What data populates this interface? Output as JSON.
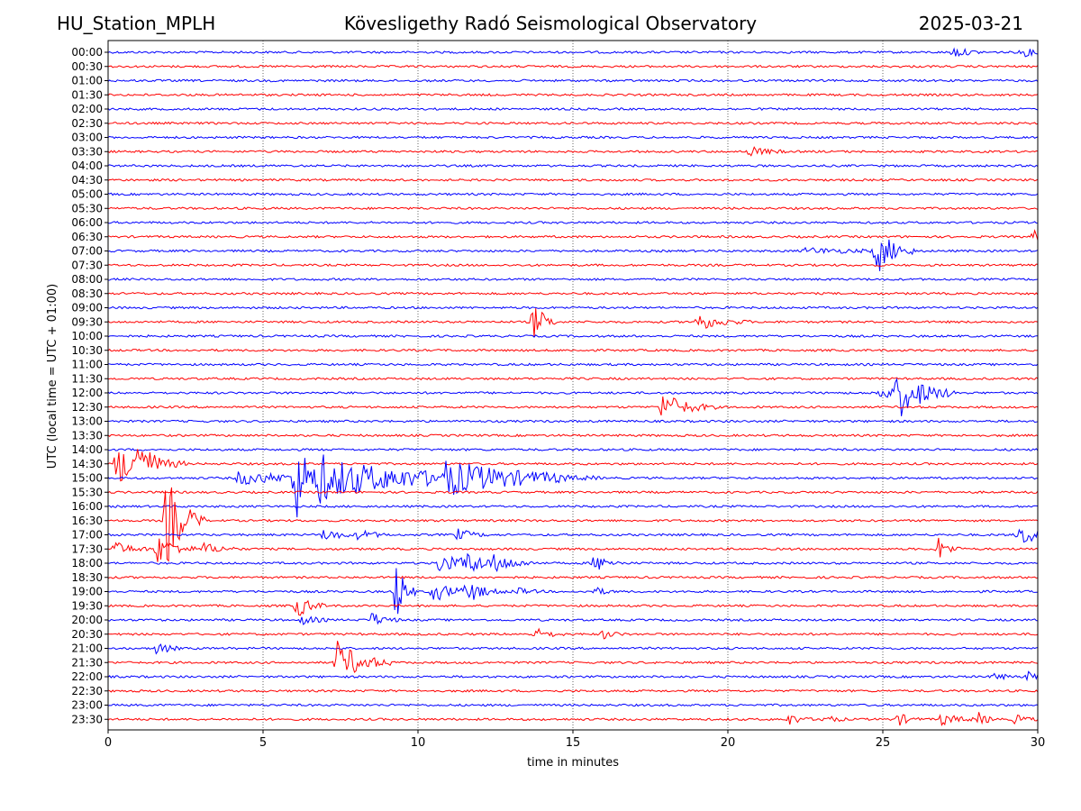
{
  "header": {
    "station": "HU_Station_MPLH",
    "observatory": "Kövesligethy Radó Seismological Observatory",
    "date": "2025-03-21"
  },
  "chart_data": {
    "type": "line",
    "title": "Kövesligethy Radó Seismological Observatory",
    "xlabel": "time in minutes",
    "ylabel": "UTC (local time = UTC + 01:00)",
    "xlim": [
      0,
      30
    ],
    "xticks": [
      0,
      5,
      10,
      15,
      20,
      25,
      30
    ],
    "grid": "vertical dotted at 5, 10, 15, 20, 25",
    "colors": {
      "even_rows": "#0000ff",
      "odd_rows": "#ff0000"
    },
    "rows": [
      "00:00",
      "00:30",
      "01:00",
      "01:30",
      "02:00",
      "02:30",
      "03:00",
      "03:30",
      "04:00",
      "04:30",
      "05:00",
      "05:30",
      "06:00",
      "06:30",
      "07:00",
      "07:30",
      "08:00",
      "08:30",
      "09:00",
      "09:30",
      "10:00",
      "10:30",
      "11:00",
      "11:30",
      "12:00",
      "12:30",
      "13:00",
      "13:30",
      "14:00",
      "14:30",
      "15:00",
      "15:30",
      "16:00",
      "16:30",
      "17:00",
      "17:30",
      "18:00",
      "18:30",
      "19:00",
      "19:30",
      "20:00",
      "20:30",
      "21:00",
      "21:30",
      "22:00",
      "22:30",
      "23:00",
      "23:30"
    ],
    "events": [
      {
        "row": "00:00",
        "t": 27.3,
        "amp": 0.35,
        "dur": 0.4
      },
      {
        "row": "00:00",
        "t": 29.5,
        "amp": 0.3,
        "dur": 0.4
      },
      {
        "row": "03:30",
        "t": 20.7,
        "amp": 0.35,
        "dur": 0.5
      },
      {
        "row": "06:30",
        "t": 29.9,
        "amp": 0.4,
        "dur": 0.2
      },
      {
        "row": "07:00",
        "t": 24.8,
        "amp": 1.6,
        "dur": 0.5
      },
      {
        "row": "07:00",
        "t": 22.5,
        "amp": 0.2,
        "dur": 1.5
      },
      {
        "row": "09:30",
        "t": 13.75,
        "amp": 1.4,
        "dur": 0.3
      },
      {
        "row": "09:30",
        "t": 19.0,
        "amp": 0.6,
        "dur": 0.7
      },
      {
        "row": "12:00",
        "t": 25.5,
        "amp": 1.6,
        "dur": 0.8
      },
      {
        "row": "12:00",
        "t": 24.9,
        "amp": 0.5,
        "dur": 0.6
      },
      {
        "row": "12:30",
        "t": 17.9,
        "amp": 1.0,
        "dur": 0.7
      },
      {
        "row": "14:30",
        "t": 0.3,
        "amp": 1.4,
        "dur": 0.9
      },
      {
        "row": "14:30",
        "t": 0.9,
        "amp": 1.8,
        "dur": 0.3
      },
      {
        "row": "15:00",
        "t": 6.05,
        "amp": 3.0,
        "dur": 0.4
      },
      {
        "row": "15:00",
        "t": 6.8,
        "amp": 1.4,
        "dur": 3.2
      },
      {
        "row": "15:00",
        "t": 10.9,
        "amp": 0.9,
        "dur": 2.0
      },
      {
        "row": "15:00",
        "t": 4.2,
        "amp": 0.45,
        "dur": 1.8
      },
      {
        "row": "16:30",
        "t": 1.9,
        "amp": 3.2,
        "dur": 0.5
      },
      {
        "row": "17:00",
        "t": 7.0,
        "amp": 0.5,
        "dur": 0.4
      },
      {
        "row": "17:00",
        "t": 8.1,
        "amp": 0.4,
        "dur": 0.4
      },
      {
        "row": "17:00",
        "t": 11.3,
        "amp": 0.4,
        "dur": 0.4
      },
      {
        "row": "17:00",
        "t": 29.4,
        "amp": 0.6,
        "dur": 1.2
      },
      {
        "row": "17:30",
        "t": 0.2,
        "amp": 0.5,
        "dur": 0.5
      },
      {
        "row": "17:30",
        "t": 1.6,
        "amp": 1.0,
        "dur": 0.5
      },
      {
        "row": "17:30",
        "t": 3.1,
        "amp": 0.4,
        "dur": 0.5
      },
      {
        "row": "17:30",
        "t": 26.8,
        "amp": 0.8,
        "dur": 0.3
      },
      {
        "row": "18:00",
        "t": 10.7,
        "amp": 0.7,
        "dur": 0.6
      },
      {
        "row": "18:00",
        "t": 11.5,
        "amp": 0.6,
        "dur": 1.0
      },
      {
        "row": "18:00",
        "t": 12.5,
        "amp": 0.5,
        "dur": 0.4
      },
      {
        "row": "18:00",
        "t": 15.7,
        "amp": 0.6,
        "dur": 0.4
      },
      {
        "row": "19:00",
        "t": 9.3,
        "amp": 2.2,
        "dur": 0.25
      },
      {
        "row": "19:00",
        "t": 10.5,
        "amp": 0.7,
        "dur": 0.6
      },
      {
        "row": "19:00",
        "t": 11.6,
        "amp": 0.7,
        "dur": 0.5
      },
      {
        "row": "19:00",
        "t": 13.1,
        "amp": 0.3,
        "dur": 0.4
      },
      {
        "row": "19:00",
        "t": 15.7,
        "amp": 0.3,
        "dur": 0.3
      },
      {
        "row": "19:30",
        "t": 6.1,
        "amp": 0.8,
        "dur": 0.4
      },
      {
        "row": "20:00",
        "t": 6.3,
        "amp": 0.3,
        "dur": 0.4
      },
      {
        "row": "20:00",
        "t": 8.5,
        "amp": 0.5,
        "dur": 0.4
      },
      {
        "row": "20:30",
        "t": 13.8,
        "amp": 0.4,
        "dur": 0.4
      },
      {
        "row": "20:30",
        "t": 16.0,
        "amp": 0.3,
        "dur": 0.3
      },
      {
        "row": "21:00",
        "t": 1.6,
        "amp": 0.5,
        "dur": 0.3
      },
      {
        "row": "21:30",
        "t": 7.4,
        "amp": 1.5,
        "dur": 0.7
      },
      {
        "row": "22:00",
        "t": 28.6,
        "amp": 0.3,
        "dur": 0.3
      },
      {
        "row": "22:00",
        "t": 29.7,
        "amp": 0.3,
        "dur": 0.3
      },
      {
        "row": "23:30",
        "t": 22.0,
        "amp": 0.4,
        "dur": 0.3
      },
      {
        "row": "23:30",
        "t": 23.1,
        "amp": 0.35,
        "dur": 0.3
      },
      {
        "row": "23:30",
        "t": 25.5,
        "amp": 0.45,
        "dur": 0.3
      },
      {
        "row": "23:30",
        "t": 26.9,
        "amp": 0.4,
        "dur": 0.5
      },
      {
        "row": "23:30",
        "t": 28.1,
        "amp": 0.4,
        "dur": 0.3
      },
      {
        "row": "23:30",
        "t": 29.3,
        "amp": 0.35,
        "dur": 0.3
      }
    ]
  }
}
